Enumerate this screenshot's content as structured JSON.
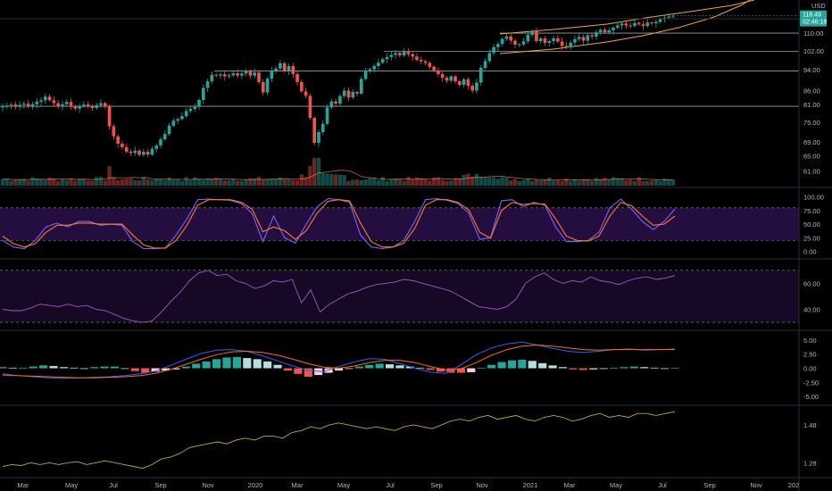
{
  "chart_data": [
    {
      "panel": "price",
      "type": "candlestick",
      "currency": "USD",
      "last_price": "118.49",
      "countdown": "02:46:18",
      "y_ticks": [
        "110.00",
        "102.00",
        "94.00",
        "86.00",
        "81.00",
        "75.00",
        "69.00",
        "65.00",
        "61.00"
      ],
      "ylim": [
        59,
        122
      ],
      "log_scale": true,
      "horizontal_levels": [
        110.0,
        101.7,
        93.5,
        80.4
      ],
      "colors": {
        "up": "#26a69a",
        "down": "#ef5350",
        "level": "#d1d4dc",
        "channel": "#f0a53a",
        "volume_ma": "#e8825a"
      },
      "closes": [
        80.4,
        80.7,
        81.0,
        80.2,
        80.9,
        81.3,
        80.5,
        81.1,
        82.0,
        82.5,
        83.8,
        82.5,
        81.5,
        80.3,
        81.1,
        81.9,
        80.4,
        79.6,
        80.4,
        81.0,
        80.4,
        79.8,
        80.8,
        81.5,
        80.4,
        73.8,
        70.7,
        68.5,
        67.5,
        66.2,
        65.8,
        66.5,
        65.3,
        66.2,
        65.4,
        67.0,
        68.0,
        69.8,
        71.4,
        74.0,
        75.6,
        76.1,
        77.1,
        78.8,
        79.5,
        80.2,
        82.6,
        87.0,
        89.5,
        92.0,
        91.7,
        92.2,
        91.4,
        91.8,
        92.6,
        91.7,
        92.5,
        93.5,
        91.7,
        92.9,
        89.2,
        85.3,
        90.5,
        93.7,
        94.5,
        96.7,
        93.5,
        95.5,
        92.3,
        89.2,
        85.7,
        84.1,
        76.5,
        68.7,
        72.0,
        74.6,
        80.0,
        82.1,
        81.3,
        84.0,
        86.0,
        83.5,
        85.5,
        84.9,
        90.4,
        93.5,
        94.2,
        95.5,
        96.9,
        98.4,
        99.3,
        100.2,
        101.0,
        100.0,
        101.7,
        100.5,
        99.5,
        98.1,
        97.5,
        96.8,
        95.2,
        93.8,
        92.3,
        90.9,
        89.7,
        91.4,
        89.5,
        88.1,
        90.2,
        87.8,
        86.0,
        89.0,
        94.8,
        97.6,
        101.0,
        103.6,
        105.0,
        107.3,
        108.5,
        106.5,
        104.7,
        104.8,
        106.2,
        109.2,
        111.0,
        106.3,
        107.5,
        105.5,
        106.3,
        107.6,
        106.1,
        104.1,
        103.5,
        105.6,
        107.2,
        108.2,
        106.5,
        109.0,
        108.4,
        110.4,
        111.6,
        110.4,
        111.3,
        112.6,
        113.7,
        114.6,
        113.6,
        113.4,
        114.9,
        114.2,
        113.4,
        115.1,
        114.7,
        115.4,
        116.7,
        117.5,
        118.1,
        118.49
      ],
      "x_ticks": [
        "Mar",
        "May",
        "Jul",
        "Sep",
        "Nov",
        "2020",
        "Mar",
        "May",
        "Jul",
        "Sep",
        "Nov",
        "2021",
        "Mar",
        "May",
        "Jul",
        "Sep",
        "Nov",
        "202"
      ]
    },
    {
      "panel": "stochastic",
      "type": "line",
      "y_ticks": [
        "100.00",
        "75.00",
        "50.00",
        "25.00",
        "0.00"
      ],
      "ylim": [
        -4,
        106
      ],
      "band": [
        20,
        80
      ],
      "series": [
        {
          "color": "#7b61ff",
          "values": [
            20,
            8,
            5,
            20,
            45,
            52,
            45,
            55,
            55,
            48,
            50,
            48,
            18,
            5,
            5,
            6,
            30,
            60,
            95,
            96,
            95,
            94,
            88,
            70,
            18,
            65,
            25,
            15,
            50,
            82,
            97,
            95,
            90,
            30,
            8,
            5,
            8,
            20,
            55,
            95,
            97,
            94,
            88,
            70,
            22,
            25,
            93,
            95,
            82,
            90,
            85,
            45,
            18,
            18,
            20,
            35,
            80,
            96,
            78,
            55,
            40,
            55,
            78
          ]
        },
        {
          "color": "#ff7a2b",
          "values": [
            28,
            14,
            8,
            14,
            35,
            48,
            48,
            52,
            52,
            50,
            50,
            50,
            30,
            12,
            6,
            6,
            20,
            48,
            85,
            95,
            95,
            95,
            90,
            78,
            36,
            45,
            38,
            22,
            38,
            70,
            92,
            95,
            93,
            52,
            18,
            8,
            8,
            15,
            42,
            85,
            95,
            95,
            90,
            76,
            35,
            24,
            75,
            90,
            86,
            88,
            87,
            60,
            28,
            20,
            19,
            28,
            65,
            90,
            84,
            65,
            48,
            50,
            65
          ]
        }
      ]
    },
    {
      "panel": "rsi",
      "type": "line",
      "y_ticks": [
        "60.00",
        "40.00"
      ],
      "ylim": [
        28,
        74
      ],
      "band": [
        30,
        70
      ],
      "series": [
        {
          "color": "#9b59c4",
          "values": [
            40,
            39,
            39,
            41,
            44,
            43,
            42,
            44,
            42,
            43,
            40,
            39,
            36,
            33,
            31,
            30,
            31,
            38,
            46,
            53,
            62,
            68,
            70,
            66,
            67,
            62,
            60,
            56,
            58,
            62,
            61,
            63,
            45,
            55,
            38,
            44,
            48,
            52,
            54,
            57,
            59,
            60,
            61,
            63,
            62,
            60,
            58,
            56,
            54,
            50,
            46,
            42,
            41,
            40,
            42,
            48,
            60,
            65,
            68,
            63,
            60,
            62,
            61,
            65,
            62,
            61,
            59,
            62,
            64,
            65,
            63,
            64,
            66
          ]
        }
      ]
    },
    {
      "panel": "macd",
      "type": "bar",
      "y_ticks": [
        "5.00",
        "2.50",
        "0.00",
        "-2.50",
        "-5.00"
      ],
      "ylim": [
        -5.6,
        5.6
      ],
      "colors": {
        "pos_up": "#26a69a",
        "pos_down": "#b2dfdb",
        "neg_down": "#ef5350",
        "neg_up": "#ffcdd2",
        "macd": "#2962ff",
        "signal": "#ff6d00"
      },
      "histogram": [
        0.2,
        0.1,
        0.1,
        0.3,
        0.5,
        0.4,
        0.2,
        0.1,
        0.0,
        0.2,
        0.3,
        0.3,
        0.0,
        -0.5,
        -0.8,
        -0.6,
        -0.4,
        -0.2,
        0.3,
        0.8,
        1.2,
        1.6,
        1.9,
        2.0,
        1.8,
        1.6,
        1.2,
        0.6,
        -0.4,
        -1.0,
        -1.5,
        -1.2,
        -0.8,
        -0.4,
        -0.1,
        0.3,
        0.6,
        0.8,
        0.7,
        0.5,
        0.3,
        0.1,
        -0.3,
        -0.6,
        -0.8,
        -0.8,
        -0.7,
        0.1,
        0.6,
        1.1,
        1.4,
        1.5,
        1.3,
        0.9,
        0.5,
        0.2,
        -0.2,
        -0.3,
        -0.2,
        -0.1,
        0.1,
        0.2,
        0.3,
        0.2,
        0.1,
        0.0,
        0.1
      ],
      "macd_line": [
        -1.0,
        -1.3,
        -1.5,
        -1.7,
        -1.8,
        -1.7,
        -1.6,
        -1.5,
        -1.3,
        -1.0,
        -0.5,
        0.5,
        1.6,
        2.6,
        3.2,
        3.3,
        3.0,
        2.2,
        1.3,
        0.4,
        -0.4,
        -0.6,
        0.3,
        1.1,
        1.7,
        1.6,
        0.8,
        0.0,
        -0.7,
        -0.9,
        0.6,
        2.4,
        3.6,
        4.3,
        4.6,
        4.1,
        3.5,
        3.0,
        2.8,
        3.0,
        3.3,
        3.4,
        3.2,
        3.3,
        3.4
      ],
      "signal_line": [
        -1.2,
        -1.3,
        -1.4,
        -1.5,
        -1.6,
        -1.7,
        -1.7,
        -1.6,
        -1.5,
        -1.3,
        -0.9,
        -0.2,
        0.7,
        1.6,
        2.4,
        2.9,
        3.0,
        2.8,
        2.3,
        1.6,
        0.8,
        0.2,
        0.0,
        0.4,
        1.0,
        1.4,
        1.4,
        1.0,
        0.3,
        -0.3,
        -0.1,
        1.0,
        2.3,
        3.3,
        3.9,
        4.1,
        3.9,
        3.6,
        3.3,
        3.2,
        3.3,
        3.3,
        3.3,
        3.3,
        3.3
      ]
    },
    {
      "panel": "ratio",
      "type": "line",
      "y_ticks": [
        "1.48",
        "1.28"
      ],
      "ylim": [
        1.22,
        1.56
      ],
      "series": [
        {
          "color": "#c3a82b",
          "values": [
            1.26,
            1.27,
            1.265,
            1.28,
            1.27,
            1.28,
            1.27,
            1.28,
            1.285,
            1.27,
            1.28,
            1.29,
            1.28,
            1.27,
            1.26,
            1.25,
            1.27,
            1.3,
            1.31,
            1.33,
            1.36,
            1.37,
            1.38,
            1.39,
            1.38,
            1.4,
            1.41,
            1.4,
            1.42,
            1.42,
            1.41,
            1.44,
            1.45,
            1.47,
            1.46,
            1.48,
            1.49,
            1.48,
            1.47,
            1.46,
            1.47,
            1.46,
            1.45,
            1.47,
            1.48,
            1.47,
            1.46,
            1.48,
            1.5,
            1.51,
            1.5,
            1.52,
            1.53,
            1.51,
            1.52,
            1.53,
            1.51,
            1.5,
            1.52,
            1.53,
            1.52,
            1.5,
            1.51,
            1.53,
            1.54,
            1.52,
            1.53,
            1.52,
            1.54,
            1.54,
            1.53,
            1.54,
            1.55
          ]
        }
      ]
    }
  ]
}
